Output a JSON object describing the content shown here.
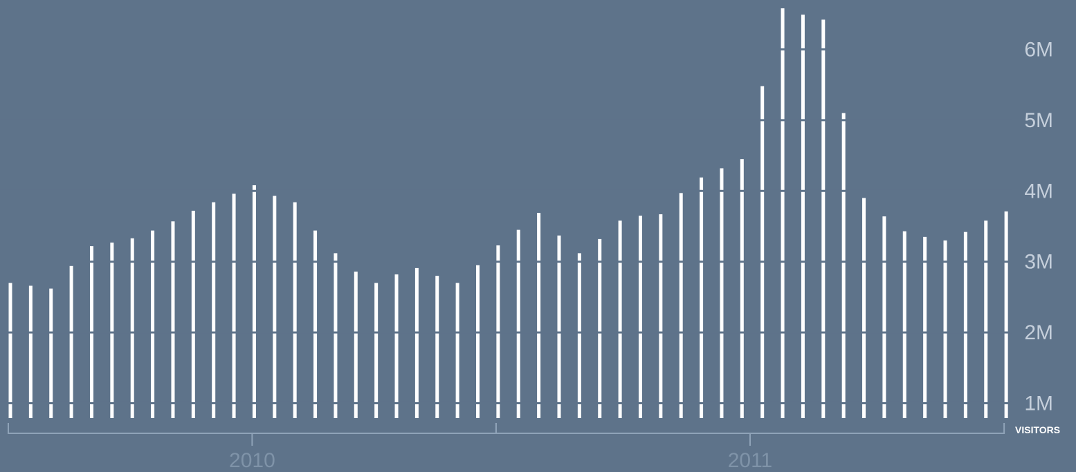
{
  "colors": {
    "background": "#5e738a",
    "bar": "#ffffff",
    "tick_label": "#c5cfdb",
    "axis_bracket": "#8fa3b8",
    "year_label": "#7f93a8"
  },
  "chart_data": {
    "type": "bar",
    "title": "",
    "xlabel": "",
    "ylabel": "VISITORS",
    "ylim": [
      0.79,
      6.6
    ],
    "y_ticks": [
      {
        "value": 1,
        "label": "1M"
      },
      {
        "value": 2,
        "label": "2M"
      },
      {
        "value": 3,
        "label": "3M"
      },
      {
        "value": 4,
        "label": "4M"
      },
      {
        "value": 5,
        "label": "5M"
      },
      {
        "value": 6,
        "label": "6M"
      }
    ],
    "grid": "horizontal gaps cut through bars at each tick",
    "unit_label": "VISITORS",
    "year_groups": [
      {
        "label": "2010",
        "start": 0,
        "end": 24
      },
      {
        "label": "2011",
        "start": 24,
        "end": 49
      }
    ],
    "values": [
      2.7,
      2.66,
      2.62,
      2.94,
      3.22,
      3.27,
      3.33,
      3.44,
      3.57,
      3.72,
      3.84,
      3.96,
      4.08,
      3.93,
      3.84,
      3.44,
      3.12,
      2.86,
      2.7,
      2.82,
      2.91,
      2.8,
      2.7,
      2.95,
      3.23,
      3.45,
      3.69,
      3.37,
      3.12,
      3.32,
      3.58,
      3.65,
      3.67,
      3.97,
      4.19,
      4.32,
      4.45,
      5.48,
      6.58,
      6.49,
      6.42,
      5.1,
      3.9,
      3.64,
      3.43,
      3.35,
      3.3,
      3.42,
      3.58,
      3.71
    ]
  }
}
